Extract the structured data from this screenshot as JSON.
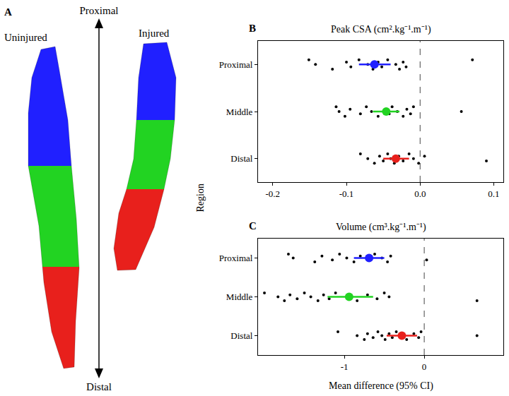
{
  "figure": {
    "y_label": "Region",
    "diagram": {
      "panel": "A",
      "top_label": "Proximal",
      "bottom_label": "Distal",
      "specimens": [
        "Uninjured",
        "Injured"
      ],
      "region_colors": [
        "#2020ff",
        "#22d322",
        "#e8201c"
      ]
    }
  },
  "chart_data": [
    {
      "panel": "B",
      "type": "dot",
      "title": "Peak CSA (cm².kg⁻¹.m⁻¹)",
      "categories": [
        "Proximal",
        "Middle",
        "Distal"
      ],
      "colors": [
        "#2020ff",
        "#22d322",
        "#e8201c"
      ],
      "points": [
        [
          -0.151,
          -0.142,
          -0.119,
          -0.1,
          -0.094,
          -0.083,
          -0.071,
          -0.064,
          -0.057,
          -0.052,
          -0.044,
          -0.033,
          -0.028,
          -0.023,
          -0.019,
          0.071
        ],
        [
          -0.114,
          -0.11,
          -0.102,
          -0.095,
          -0.081,
          -0.073,
          -0.066,
          -0.057,
          -0.047,
          -0.042,
          -0.038,
          -0.031,
          -0.023,
          -0.018,
          -0.013,
          -0.009,
          0.056
        ],
        [
          -0.081,
          -0.071,
          -0.062,
          -0.055,
          -0.05,
          -0.044,
          -0.04,
          -0.035,
          -0.029,
          -0.023,
          -0.015,
          -0.009,
          -0.002,
          0.006,
          0.09
        ]
      ],
      "means": [
        -0.062,
        -0.046,
        -0.033
      ],
      "ci_low": [
        -0.083,
        -0.064,
        -0.05
      ],
      "ci_high": [
        -0.04,
        -0.028,
        -0.015
      ],
      "reference_x": 0,
      "xlim": [
        -0.22,
        0.113
      ],
      "xticks": [
        -0.2,
        -0.1,
        {
          "value": 0,
          "label": "0.0"
        },
        0.1
      ]
    },
    {
      "panel": "C",
      "type": "dot",
      "title": "Volume (cm³.kg⁻¹.m⁻¹)",
      "x_label": "Mean difference (95% CI)",
      "categories": [
        "Proximal",
        "Middle",
        "Distal"
      ],
      "colors": [
        "#2020ff",
        "#22d322",
        "#e8201c"
      ],
      "points": [
        [
          -1.7,
          -1.64,
          -1.37,
          -1.28,
          -1.15,
          -1.06,
          -0.97,
          -0.88,
          -0.8,
          -0.71,
          -0.62,
          -0.53,
          -0.46,
          -0.42,
          0.03
        ],
        [
          -2.0,
          -1.83,
          -1.75,
          -1.68,
          -1.59,
          -1.5,
          -1.42,
          -1.33,
          -1.26,
          -1.19,
          -1.11,
          -0.97,
          -0.84,
          -0.71,
          -0.59,
          -0.5,
          -0.44,
          0.66
        ],
        [
          -1.08,
          -0.84,
          -0.75,
          -0.71,
          -0.64,
          -0.58,
          -0.53,
          -0.49,
          -0.44,
          -0.4,
          -0.35,
          -0.31,
          -0.22,
          -0.13,
          -0.07,
          -0.04,
          0.66
        ]
      ],
      "means": [
        -0.69,
        -0.94,
        -0.28
      ],
      "ci_low": [
        -0.88,
        -1.21,
        -0.47
      ],
      "ci_high": [
        -0.5,
        -0.64,
        -0.09
      ],
      "reference_x": 0,
      "xlim": [
        -2.08,
        0.99
      ],
      "xticks": [
        -1,
        0
      ]
    }
  ]
}
